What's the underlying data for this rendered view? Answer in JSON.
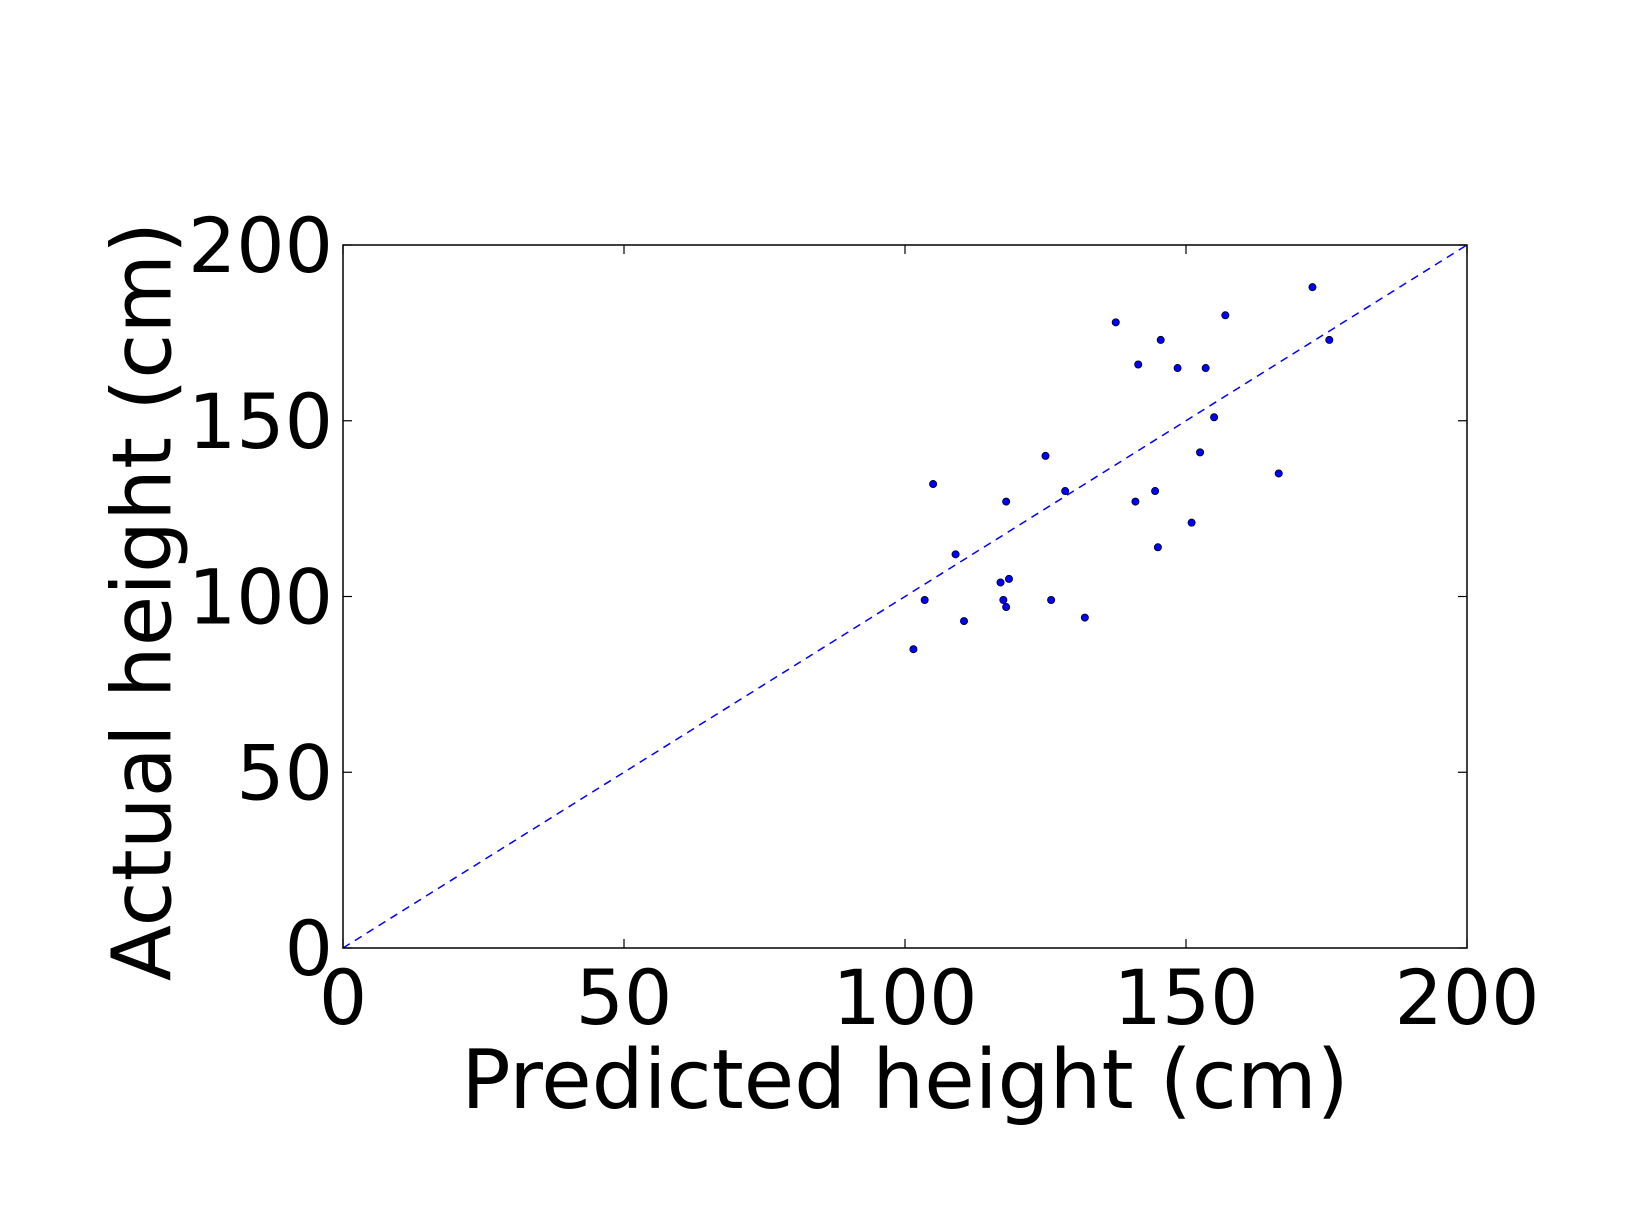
{
  "chart_data": {
    "type": "scatter",
    "xlabel": "Predicted height (cm)",
    "ylabel": "Actual height (cm)",
    "xlim": [
      0,
      200
    ],
    "ylim": [
      0,
      200
    ],
    "xticks": [
      "0",
      "50",
      "100",
      "150",
      "200"
    ],
    "yticks": [
      "0",
      "50",
      "100",
      "150",
      "200"
    ],
    "grid": false,
    "reference_line": {
      "x": [
        0,
        200
      ],
      "y": [
        0,
        200
      ],
      "style": "dashed",
      "color": "#0000ff"
    },
    "series": [
      {
        "color": "#0000ff",
        "points": [
          {
            "x": 101.5,
            "y": 85
          },
          {
            "x": 103.5,
            "y": 99
          },
          {
            "x": 105,
            "y": 132
          },
          {
            "x": 109,
            "y": 112
          },
          {
            "x": 110.5,
            "y": 93
          },
          {
            "x": 117,
            "y": 104
          },
          {
            "x": 117.5,
            "y": 99
          },
          {
            "x": 118,
            "y": 97
          },
          {
            "x": 118,
            "y": 127
          },
          {
            "x": 118.5,
            "y": 105
          },
          {
            "x": 125,
            "y": 140
          },
          {
            "x": 126,
            "y": 99
          },
          {
            "x": 128.5,
            "y": 130
          },
          {
            "x": 132,
            "y": 94
          },
          {
            "x": 137.5,
            "y": 178
          },
          {
            "x": 141,
            "y": 127
          },
          {
            "x": 141.5,
            "y": 166
          },
          {
            "x": 144.5,
            "y": 130
          },
          {
            "x": 145,
            "y": 114
          },
          {
            "x": 145.5,
            "y": 173
          },
          {
            "x": 148.5,
            "y": 165
          },
          {
            "x": 151,
            "y": 121
          },
          {
            "x": 152.5,
            "y": 141
          },
          {
            "x": 153.5,
            "y": 165
          },
          {
            "x": 155,
            "y": 151
          },
          {
            "x": 157,
            "y": 180
          },
          {
            "x": 166.5,
            "y": 135
          },
          {
            "x": 172.5,
            "y": 188
          },
          {
            "x": 175.5,
            "y": 173
          }
        ]
      }
    ]
  }
}
